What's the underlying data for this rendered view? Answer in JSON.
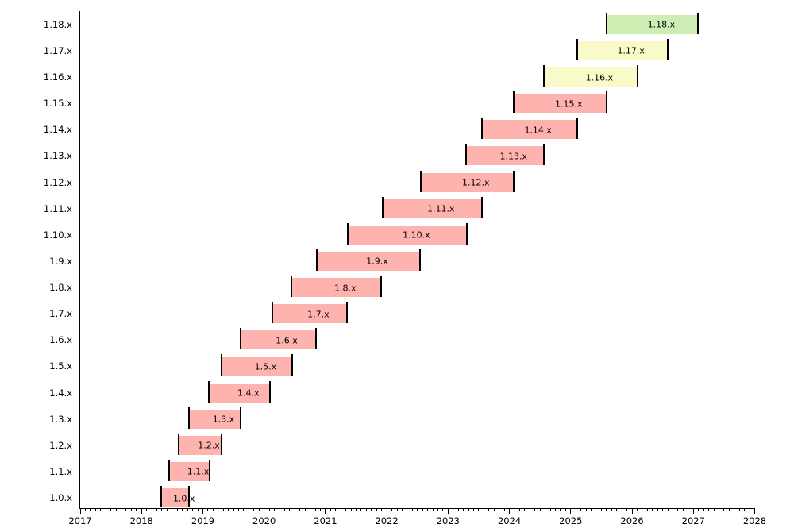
{
  "chart_data": {
    "type": "gantt",
    "description": "Version support timeline bar chart, one horizontal bar per release line from 1.0.x to 1.18.x, plotted against years 2017-2028",
    "x_axis": {
      "min": 2017,
      "max": 2028,
      "tick_labels": [
        "2017",
        "2018",
        "2019",
        "2020",
        "2021",
        "2022",
        "2023",
        "2024",
        "2025",
        "2026",
        "2027",
        "2028"
      ],
      "minor_ticks": "monthly",
      "grid": false
    },
    "y_axis": {
      "tick_labels": [
        "1.0.x",
        "1.1.x",
        "1.2.x",
        "1.3.x",
        "1.4.x",
        "1.5.x",
        "1.6.x",
        "1.7.x",
        "1.8.x",
        "1.9.x",
        "1.10.x",
        "1.11.x",
        "1.12.x",
        "1.13.x",
        "1.14.x",
        "1.15.x",
        "1.16.x",
        "1.17.x",
        "1.18.x"
      ]
    },
    "colors": {
      "eol": "#ffb3ae",
      "maintained": "#fafac8",
      "current": "#cdeeb3",
      "marker": "#000000"
    },
    "legend": "none",
    "bars": [
      {
        "label": "1.0.x",
        "start": 2018.32,
        "end": 2018.78,
        "status": "eol"
      },
      {
        "label": "1.1.x",
        "start": 2018.45,
        "end": 2019.11,
        "status": "eol"
      },
      {
        "label": "1.2.x",
        "start": 2018.61,
        "end": 2019.3,
        "status": "eol"
      },
      {
        "label": "1.3.x",
        "start": 2018.78,
        "end": 2019.61,
        "status": "eol"
      },
      {
        "label": "1.4.x",
        "start": 2019.1,
        "end": 2020.1,
        "status": "eol"
      },
      {
        "label": "1.5.x",
        "start": 2019.3,
        "end": 2020.46,
        "status": "eol"
      },
      {
        "label": "1.6.x",
        "start": 2019.61,
        "end": 2020.84,
        "status": "eol"
      },
      {
        "label": "1.7.x",
        "start": 2020.13,
        "end": 2021.35,
        "status": "eol"
      },
      {
        "label": "1.8.x",
        "start": 2020.45,
        "end": 2021.91,
        "status": "eol"
      },
      {
        "label": "1.9.x",
        "start": 2020.86,
        "end": 2022.54,
        "status": "eol"
      },
      {
        "label": "1.10.x",
        "start": 2021.37,
        "end": 2023.31,
        "status": "eol"
      },
      {
        "label": "1.11.x",
        "start": 2021.93,
        "end": 2023.55,
        "status": "eol"
      },
      {
        "label": "1.12.x",
        "start": 2022.55,
        "end": 2024.07,
        "status": "eol"
      },
      {
        "label": "1.13.x",
        "start": 2023.29,
        "end": 2024.56,
        "status": "eol"
      },
      {
        "label": "1.14.x",
        "start": 2023.55,
        "end": 2025.1,
        "status": "eol"
      },
      {
        "label": "1.15.x",
        "start": 2024.07,
        "end": 2025.58,
        "status": "eol"
      },
      {
        "label": "1.16.x",
        "start": 2024.56,
        "end": 2026.09,
        "status": "maintained"
      },
      {
        "label": "1.17.x",
        "start": 2025.1,
        "end": 2026.58,
        "status": "maintained"
      },
      {
        "label": "1.18.x",
        "start": 2025.59,
        "end": 2027.08,
        "status": "current"
      }
    ]
  }
}
